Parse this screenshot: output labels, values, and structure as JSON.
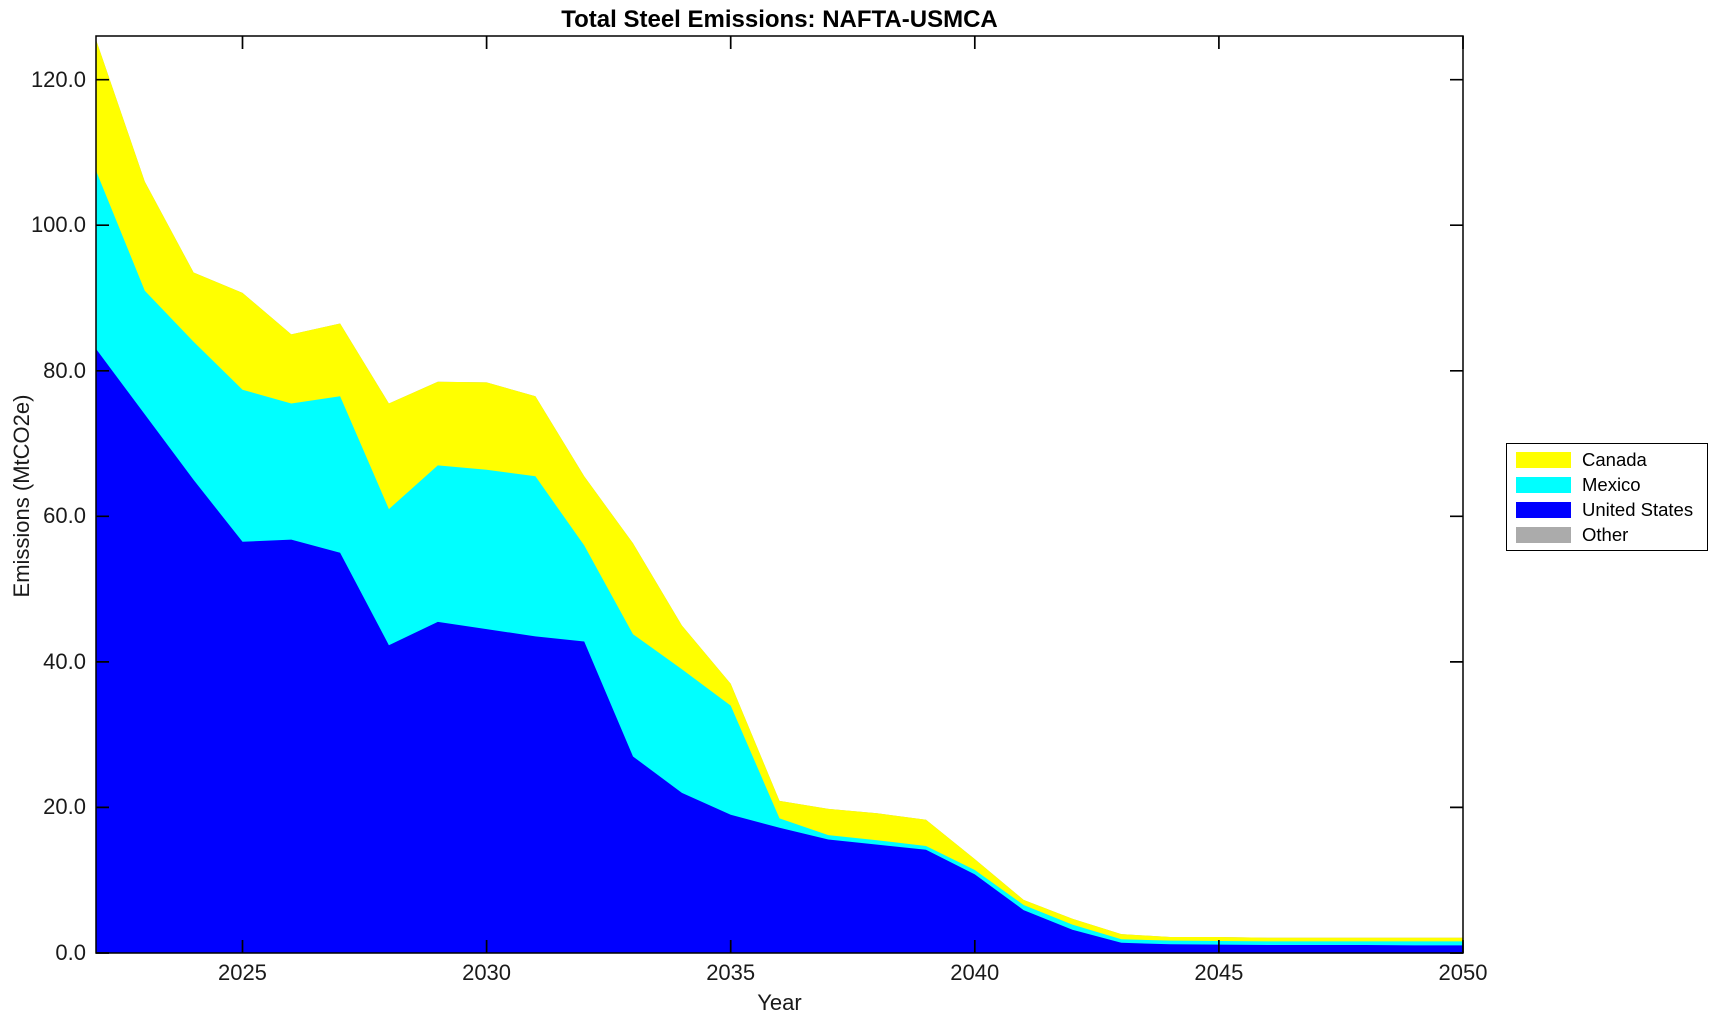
{
  "title": "Total Steel Emissions: NAFTA-USMCA",
  "axes": {
    "x": {
      "label": "Year",
      "ticks": [
        "2025",
        "2030",
        "2035",
        "2040",
        "2045",
        "2050"
      ],
      "tick_values": [
        2025,
        2030,
        2035,
        2040,
        2045,
        2050
      ]
    },
    "y": {
      "label": "Emissions (MtCO2e)",
      "ticks": [
        "0.0",
        "20.0",
        "40.0",
        "60.0",
        "80.0",
        "100.0",
        "120.0"
      ],
      "tick_values": [
        0,
        20,
        40,
        60,
        80,
        100,
        120
      ]
    }
  },
  "legend": {
    "items": [
      {
        "label": "Canada",
        "color": "#ffff00"
      },
      {
        "label": "Mexico",
        "color": "#00ffff"
      },
      {
        "label": "United States",
        "color": "#0000ff"
      },
      {
        "label": "Other",
        "color": "#ababab"
      }
    ]
  },
  "chart_data": {
    "type": "area",
    "stacked": true,
    "title": "Total Steel Emissions: NAFTA-USMCA",
    "xlabel": "Year",
    "ylabel": "Emissions (MtCO2e)",
    "xlim": [
      2022,
      2050
    ],
    "ylim": [
      0,
      126
    ],
    "grid": false,
    "legend_position": "right-outside",
    "x": [
      2022,
      2023,
      2024,
      2025,
      2026,
      2027,
      2028,
      2029,
      2030,
      2031,
      2032,
      2033,
      2034,
      2035,
      2036,
      2037,
      2038,
      2039,
      2040,
      2041,
      2042,
      2043,
      2044,
      2045,
      2046,
      2047,
      2048,
      2049,
      2050
    ],
    "series": [
      {
        "name": "United States",
        "color": "#0000ff",
        "values": [
          83.0,
          74.0,
          65.0,
          56.5,
          56.8,
          55.0,
          42.3,
          45.5,
          44.5,
          43.5,
          42.8,
          27.0,
          22.0,
          19.0,
          17.2,
          15.6,
          14.9,
          14.2,
          10.8,
          5.9,
          3.2,
          1.4,
          1.2,
          1.15,
          1.1,
          1.1,
          1.1,
          1.05,
          1.05
        ]
      },
      {
        "name": "Mexico",
        "color": "#00ffff",
        "values": [
          24.5,
          17.0,
          19.0,
          20.9,
          18.7,
          21.5,
          18.7,
          21.5,
          21.9,
          22.0,
          13.2,
          16.8,
          17.0,
          15.0,
          1.3,
          0.6,
          0.6,
          0.5,
          0.6,
          0.7,
          0.7,
          0.5,
          0.5,
          0.5,
          0.5,
          0.5,
          0.5,
          0.55,
          0.55
        ]
      },
      {
        "name": "Canada",
        "color": "#ffff00",
        "values": [
          18.0,
          15.0,
          9.5,
          13.3,
          9.5,
          10.0,
          14.5,
          11.5,
          12.0,
          11.0,
          9.5,
          12.5,
          6.0,
          3.0,
          2.4,
          3.6,
          3.7,
          3.6,
          1.5,
          0.7,
          0.8,
          0.7,
          0.5,
          0.55,
          0.5,
          0.5,
          0.5,
          0.5,
          0.5
        ]
      },
      {
        "name": "Other",
        "color": "#ababab",
        "values": [
          0,
          0,
          0,
          0,
          0,
          0,
          0,
          0,
          0,
          0,
          0,
          0,
          0,
          0,
          0,
          0,
          0,
          0,
          0,
          0,
          0,
          0,
          0,
          0,
          0,
          0,
          0,
          0,
          0
        ]
      }
    ]
  }
}
